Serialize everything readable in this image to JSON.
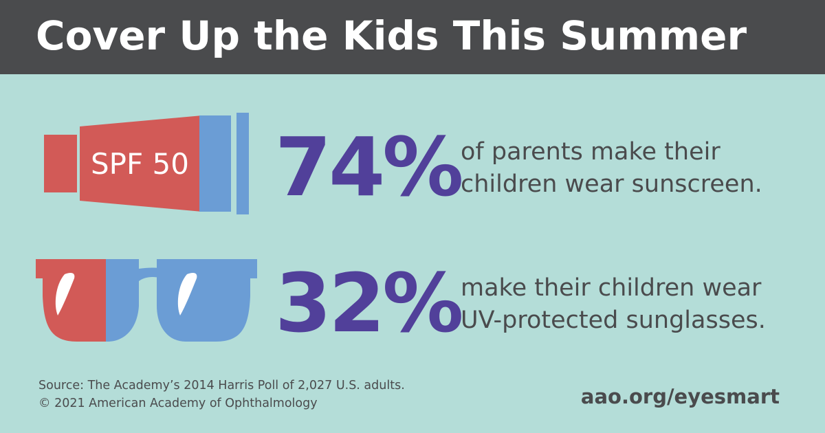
{
  "title": "Cover Up the Kids This Summer",
  "stats": [
    {
      "icon": "sunscreen-tube-icon",
      "icon_text": "SPF 50",
      "percent": "74%",
      "line1": "of parents make their",
      "line2": "children wear sunscreen."
    },
    {
      "icon": "sunglasses-icon",
      "percent": "32%",
      "line1": "make their children wear",
      "line2": "UV-protected sunglasses."
    }
  ],
  "footer": {
    "source_line1": "Source: The Academy’s 2014 Harris Poll of 2,027 U.S. adults.",
    "source_line2": "© 2021 American Academy of Ophthalmology",
    "url": "aao.org/eyesmart"
  },
  "colors": {
    "background": "#b4ddd8",
    "header": "#4a4b4d",
    "accent_purple": "#51409a",
    "red": "#d25a57",
    "blue": "#6b9dd5",
    "text": "#4a4b4d"
  }
}
